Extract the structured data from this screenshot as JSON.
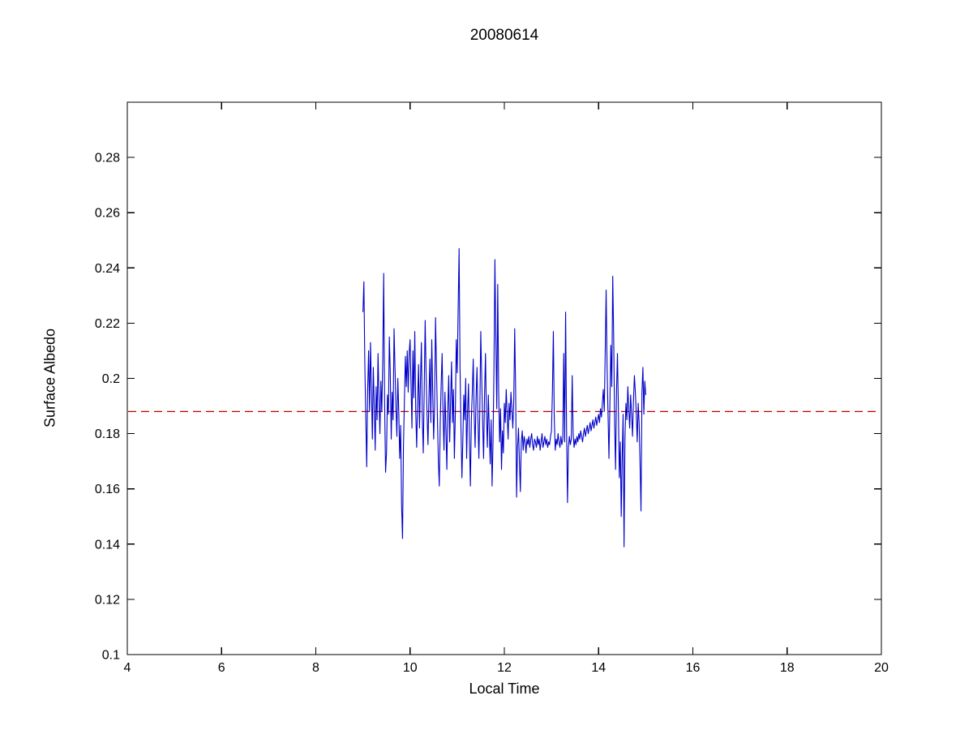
{
  "figure": {
    "title": "20080614",
    "xlabel": "Local Time",
    "ylabel": "Surface Albedo"
  },
  "chart_data": {
    "type": "line",
    "title": "20080614",
    "xlabel": "Local Time",
    "ylabel": "Surface Albedo",
    "xlim": [
      4,
      20
    ],
    "ylim": [
      0.1,
      0.3
    ],
    "grid": false,
    "legend": "none",
    "xticks": [
      4,
      6,
      8,
      10,
      12,
      14,
      16,
      18,
      20
    ],
    "xtick_labels": [
      "4",
      "6",
      "8",
      "10",
      "12",
      "14",
      "16",
      "18",
      "20"
    ],
    "yticks": [
      0.1,
      0.12,
      0.14,
      0.16,
      0.18,
      0.2,
      0.22,
      0.24,
      0.26,
      0.28
    ],
    "ytick_labels": [
      "0.1",
      "0.12",
      "0.14",
      "0.16",
      "0.18",
      "0.2",
      "0.22",
      "0.24",
      "0.26",
      "0.28"
    ],
    "axis_color": "#000000",
    "reference_line": {
      "y": 0.188,
      "color": "#c00000",
      "style": "dashed"
    },
    "series": [
      {
        "name": "surface-albedo",
        "color": "#0000c8",
        "t_start": 9.0,
        "dt": 0.02,
        "values": [
          0.224,
          0.235,
          0.205,
          0.186,
          0.168,
          0.196,
          0.21,
          0.188,
          0.213,
          0.196,
          0.178,
          0.204,
          0.19,
          0.174,
          0.197,
          0.185,
          0.209,
          0.193,
          0.18,
          0.199,
          0.188,
          0.206,
          0.238,
          0.191,
          0.166,
          0.173,
          0.194,
          0.187,
          0.215,
          0.202,
          0.178,
          0.195,
          0.185,
          0.218,
          0.204,
          0.19,
          0.179,
          0.2,
          0.188,
          0.171,
          0.183,
          0.154,
          0.142,
          0.176,
          0.192,
          0.208,
          0.197,
          0.21,
          0.195,
          0.209,
          0.214,
          0.198,
          0.182,
          0.21,
          0.193,
          0.217,
          0.188,
          0.175,
          0.192,
          0.205,
          0.182,
          0.199,
          0.213,
          0.186,
          0.173,
          0.196,
          0.221,
          0.202,
          0.187,
          0.176,
          0.193,
          0.207,
          0.184,
          0.214,
          0.195,
          0.178,
          0.19,
          0.222,
          0.204,
          0.186,
          0.17,
          0.161,
          0.184,
          0.198,
          0.209,
          0.187,
          0.174,
          0.195,
          0.182,
          0.167,
          0.189,
          0.201,
          0.177,
          0.192,
          0.206,
          0.184,
          0.196,
          0.171,
          0.187,
          0.214,
          0.202,
          0.225,
          0.247,
          0.204,
          0.182,
          0.164,
          0.178,
          0.194,
          0.185,
          0.2,
          0.171,
          0.188,
          0.198,
          0.177,
          0.161,
          0.185,
          0.195,
          0.207,
          0.187,
          0.175,
          0.193,
          0.204,
          0.185,
          0.171,
          0.189,
          0.217,
          0.2,
          0.184,
          0.171,
          0.194,
          0.209,
          0.187,
          0.175,
          0.194,
          0.182,
          0.169,
          0.185,
          0.161,
          0.177,
          0.204,
          0.243,
          0.214,
          0.189,
          0.234,
          0.195,
          0.177,
          0.189,
          0.167,
          0.181,
          0.173,
          0.191,
          0.184,
          0.196,
          0.187,
          0.178,
          0.191,
          0.185,
          0.195,
          0.189,
          0.182,
          0.192,
          0.218,
          0.195,
          0.157,
          0.175,
          0.182,
          0.17,
          0.159,
          0.177,
          0.181,
          0.174,
          0.179,
          0.177,
          0.173,
          0.178,
          0.176,
          0.179,
          0.175,
          0.178,
          0.18,
          0.176,
          0.174,
          0.178,
          0.177,
          0.175,
          0.179,
          0.176,
          0.178,
          0.174,
          0.177,
          0.18,
          0.175,
          0.177,
          0.179,
          0.176,
          0.178,
          0.175,
          0.177,
          0.176,
          0.179,
          0.181,
          0.195,
          0.217,
          0.185,
          0.174,
          0.178,
          0.176,
          0.18,
          0.177,
          0.175,
          0.179,
          0.176,
          0.178,
          0.209,
          0.177,
          0.224,
          0.182,
          0.155,
          0.175,
          0.179,
          0.176,
          0.178,
          0.201,
          0.18,
          0.175,
          0.178,
          0.176,
          0.179,
          0.177,
          0.18,
          0.178,
          0.181,
          0.179,
          0.177,
          0.18,
          0.182,
          0.179,
          0.181,
          0.183,
          0.18,
          0.182,
          0.184,
          0.181,
          0.183,
          0.185,
          0.182,
          0.184,
          0.186,
          0.183,
          0.185,
          0.187,
          0.184,
          0.189,
          0.186,
          0.191,
          0.196,
          0.188,
          0.209,
          0.232,
          0.204,
          0.187,
          0.171,
          0.191,
          0.212,
          0.197,
          0.237,
          0.215,
          0.184,
          0.167,
          0.195,
          0.209,
          0.189,
          0.164,
          0.177,
          0.15,
          0.171,
          0.187,
          0.139,
          0.179,
          0.191,
          0.185,
          0.197,
          0.189,
          0.182,
          0.194,
          0.187,
          0.179,
          0.192,
          0.201,
          0.195,
          0.187,
          0.177,
          0.191,
          0.184,
          0.169,
          0.152,
          0.195,
          0.204,
          0.187,
          0.199,
          0.194
        ]
      }
    ]
  }
}
